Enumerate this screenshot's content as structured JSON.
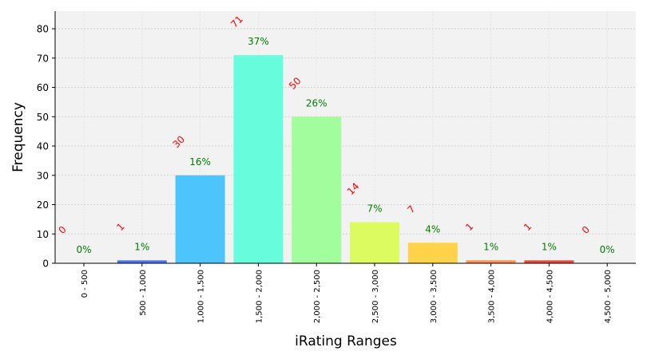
{
  "chart_data": {
    "type": "bar",
    "title": "",
    "xlabel": "iRating Ranges",
    "ylabel": "Frequency",
    "ylim": [
      0,
      86
    ],
    "yticks": [
      0,
      10,
      20,
      30,
      40,
      50,
      60,
      70,
      80
    ],
    "grid": true,
    "categories": [
      "0 - 500",
      "500 - 1,000",
      "1,000 - 1,500",
      "1,500 - 2,000",
      "2,000 - 2,500",
      "2,500 - 3,000",
      "3,000 - 3,500",
      "3,500 - 4,000",
      "4,000 - 4,500",
      "4,500 - 5,000"
    ],
    "values": [
      0,
      1,
      30,
      71,
      50,
      14,
      7,
      1,
      1,
      0
    ],
    "count_labels": [
      "0",
      "1",
      "30",
      "71",
      "50",
      "14",
      "7",
      "1",
      "1",
      "0"
    ],
    "percent_labels": [
      "0%",
      "1%",
      "16%",
      "37%",
      "26%",
      "7%",
      "4%",
      "1%",
      "1%",
      "0%"
    ],
    "bar_colors": [
      "#6a3df0",
      "#4c72f0",
      "#4dc4fb",
      "#66fcdc",
      "#a2fd9c",
      "#dcfb61",
      "#fed349",
      "#fe924a",
      "#e84b3a",
      "#b01515"
    ],
    "count_label_color": "#ff0000",
    "percent_label_color": "#008000",
    "plot_background": "#f2f2f2"
  }
}
